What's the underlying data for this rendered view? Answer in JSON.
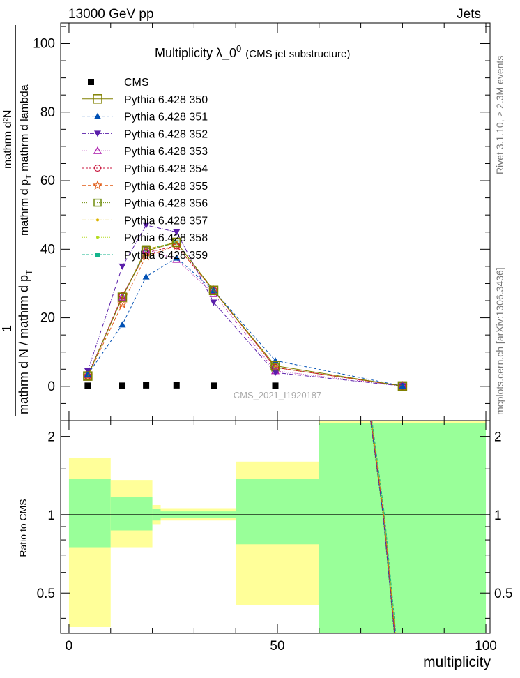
{
  "header": {
    "left": "13000 GeV pp",
    "right": "Jets"
  },
  "side": {
    "rivet": "Rivet 3.1.10, ≥ 2.3M events",
    "mcplots": "mcplots.cern.ch [arXiv:1306.3436]"
  },
  "chart_data": [
    {
      "type": "line",
      "title": "Multiplicity  λ_0",
      "title_sup": "0",
      "subtitle": "(CMS jet substructure)",
      "watermark": "CMS_2021_I1920187",
      "ylabel_prefix": "1",
      "ylabel_main": "mathrm d N / mathrm d p",
      "ylabel_sub": "T",
      "ylabel_num": "mathrm d²N",
      "ylabel_den_a": "mathrm d p",
      "ylabel_den_sub": "T",
      "ylabel_den_b": " mathrm d lambda",
      "xlim": [
        -2,
        101
      ],
      "ylim": [
        -10,
        106
      ],
      "yticks": [
        0,
        20,
        40,
        60,
        80,
        100
      ],
      "ytick_labels": [
        "0",
        "20",
        "40",
        "60",
        "80",
        "100"
      ],
      "x": [
        4.5,
        12.8,
        18.5,
        25.8,
        34.7,
        49.5,
        80
      ],
      "data": {
        "name": "CMS",
        "color": "#000000",
        "values": [
          0.2,
          0.2,
          0.3,
          0.3,
          0.2,
          0.2,
          0
        ]
      },
      "series": [
        {
          "name": "Pythia 6.428 350",
          "color": "#808000",
          "marker": "open-square-large",
          "dash": "",
          "values": [
            3.0,
            26.0,
            39.5,
            42.0,
            28.0,
            6.0,
            0.1
          ]
        },
        {
          "name": "Pythia 6.428 351",
          "color": "#0050b4",
          "marker": "filled-triangle-up",
          "dash": "4,3",
          "values": [
            3.5,
            18.0,
            32.0,
            37.5,
            28.0,
            7.5,
            0.1
          ]
        },
        {
          "name": "Pythia 6.428 352",
          "color": "#5a1eaa",
          "marker": "filled-triangle-down",
          "dash": "6,2,1,2",
          "values": [
            4.5,
            35.0,
            47.0,
            45.0,
            24.5,
            4.0,
            0.1
          ]
        },
        {
          "name": "Pythia 6.428 353",
          "color": "#aa14aa",
          "marker": "open-triangle-up",
          "dash": "1,2",
          "values": [
            3.5,
            26.0,
            40.0,
            37.0,
            27.0,
            4.5,
            0.1
          ]
        },
        {
          "name": "Pythia 6.428 354",
          "color": "#c8143c",
          "marker": "open-circle",
          "dash": "3,2",
          "values": [
            3.0,
            26.5,
            39.0,
            41.0,
            28.0,
            5.5,
            0.1
          ]
        },
        {
          "name": "Pythia 6.428 355",
          "color": "#e05a14",
          "marker": "open-star",
          "dash": "5,3",
          "values": [
            3.0,
            24.0,
            38.0,
            41.0,
            28.0,
            5.5,
            0.1
          ]
        },
        {
          "name": "Pythia 6.428 356",
          "color": "#6e8c0a",
          "marker": "open-square",
          "dash": "1,2",
          "values": [
            3.0,
            26.0,
            40.0,
            42.0,
            28.0,
            5.5,
            0.1
          ]
        },
        {
          "name": "Pythia 6.428 357",
          "color": "#dcb400",
          "marker": "small-dot",
          "dash": "6,2,1,2",
          "values": [
            3.0,
            26.0,
            40.0,
            42.0,
            28.0,
            5.5,
            0.1
          ]
        },
        {
          "name": "Pythia 6.428 358",
          "color": "#b4dc1e",
          "marker": "small-dot",
          "dash": "1,2",
          "values": [
            3.0,
            26.0,
            40.0,
            42.0,
            28.0,
            5.5,
            0.1
          ]
        },
        {
          "name": "Pythia 6.428 359",
          "color": "#14b48c",
          "marker": "filled-square-small",
          "dash": "4,2",
          "values": [
            3.0,
            26.0,
            40.0,
            42.0,
            28.0,
            5.5,
            0.1
          ]
        }
      ]
    },
    {
      "type": "line",
      "title": "",
      "ylabel": "Ratio to CMS",
      "xlabel": "multiplicity",
      "xlim": [
        -2,
        101
      ],
      "ylim": [
        0.35,
        2.3
      ],
      "log_y": true,
      "yticks": [
        0.5,
        1,
        2
      ],
      "ytick_labels": [
        "0.5",
        "1",
        "2"
      ],
      "xticks": [
        0,
        50,
        100
      ],
      "xtick_labels": [
        "0",
        "50",
        "100"
      ],
      "reference": 1,
      "bands": [
        {
          "x0": 0,
          "x1": 10,
          "inner": [
            0.75,
            1.37
          ],
          "outer": [
            0.37,
            1.65
          ]
        },
        {
          "x0": 10,
          "x1": 20,
          "inner": [
            0.87,
            1.17
          ],
          "outer": [
            0.75,
            1.36
          ]
        },
        {
          "x0": 20,
          "x1": 22,
          "inner": [
            0.95,
            1.05
          ],
          "outer": [
            0.92,
            1.09
          ]
        },
        {
          "x0": 22,
          "x1": 40,
          "inner": [
            0.97,
            1.03
          ],
          "outer": [
            0.95,
            1.06
          ]
        },
        {
          "x0": 40,
          "x1": 60,
          "inner": [
            0.77,
            1.37
          ],
          "outer": [
            0.45,
            1.6
          ]
        },
        {
          "x0": 60,
          "x1": 100,
          "inner": [
            0.33,
            2.25
          ],
          "outer": [
            0.33,
            2.4
          ]
        }
      ],
      "band_colors": {
        "inner": "#99ff99",
        "outer": "#ffff99"
      },
      "curve": {
        "x": [
          72.5,
          75.5,
          78.2
        ],
        "y": [
          2.3,
          1.0,
          0.33
        ]
      }
    }
  ]
}
